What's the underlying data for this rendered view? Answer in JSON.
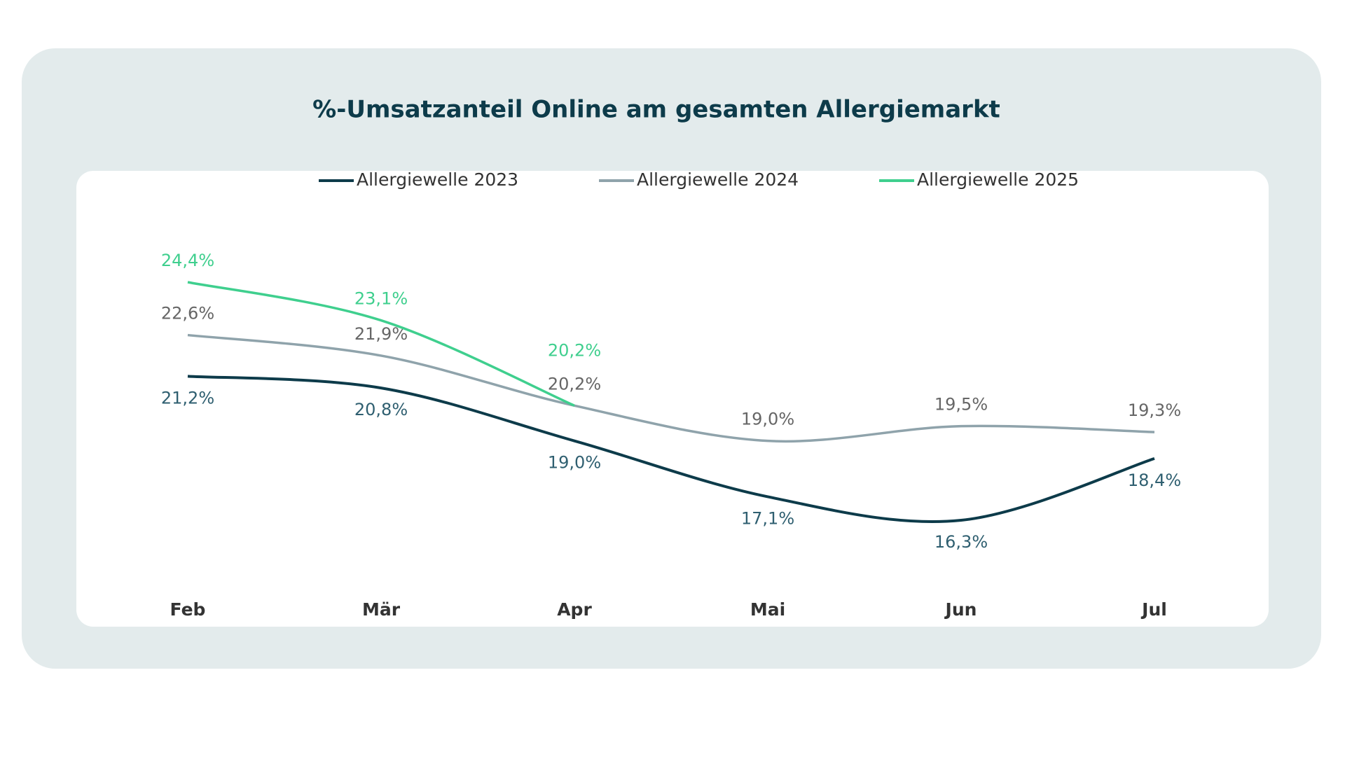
{
  "chart_data": {
    "type": "line",
    "title": "%-Umsatzanteil Online am gesamten Allergiemarkt",
    "categories": [
      "Feb",
      "Mär",
      "Apr",
      "Mai",
      "Jun",
      "Jul"
    ],
    "series": [
      {
        "name": "Allergiewelle 2023",
        "color": "#0d3b4a",
        "values": [
          21.2,
          20.8,
          19.0,
          17.1,
          16.3,
          18.4
        ],
        "value_labels": [
          "21,2%",
          "20,8%",
          "19,0%",
          "17,1%",
          "16,3%",
          "18,4%"
        ]
      },
      {
        "name": "Allergiewelle 2024",
        "color": "#8fa3ab",
        "values": [
          22.6,
          21.9,
          20.2,
          19.0,
          19.5,
          19.3
        ],
        "value_labels": [
          "22,6%",
          "21,9%",
          "20,2%",
          "19,0%",
          "19,5%",
          "19,3%"
        ]
      },
      {
        "name": "Allergiewelle 2025",
        "color": "#3fcf8e",
        "values": [
          24.4,
          23.1,
          20.2,
          null,
          null,
          null
        ],
        "value_labels": [
          "24,4%",
          "23,1%",
          "20,2%",
          null,
          null,
          null
        ]
      }
    ],
    "legend": "top"
  }
}
